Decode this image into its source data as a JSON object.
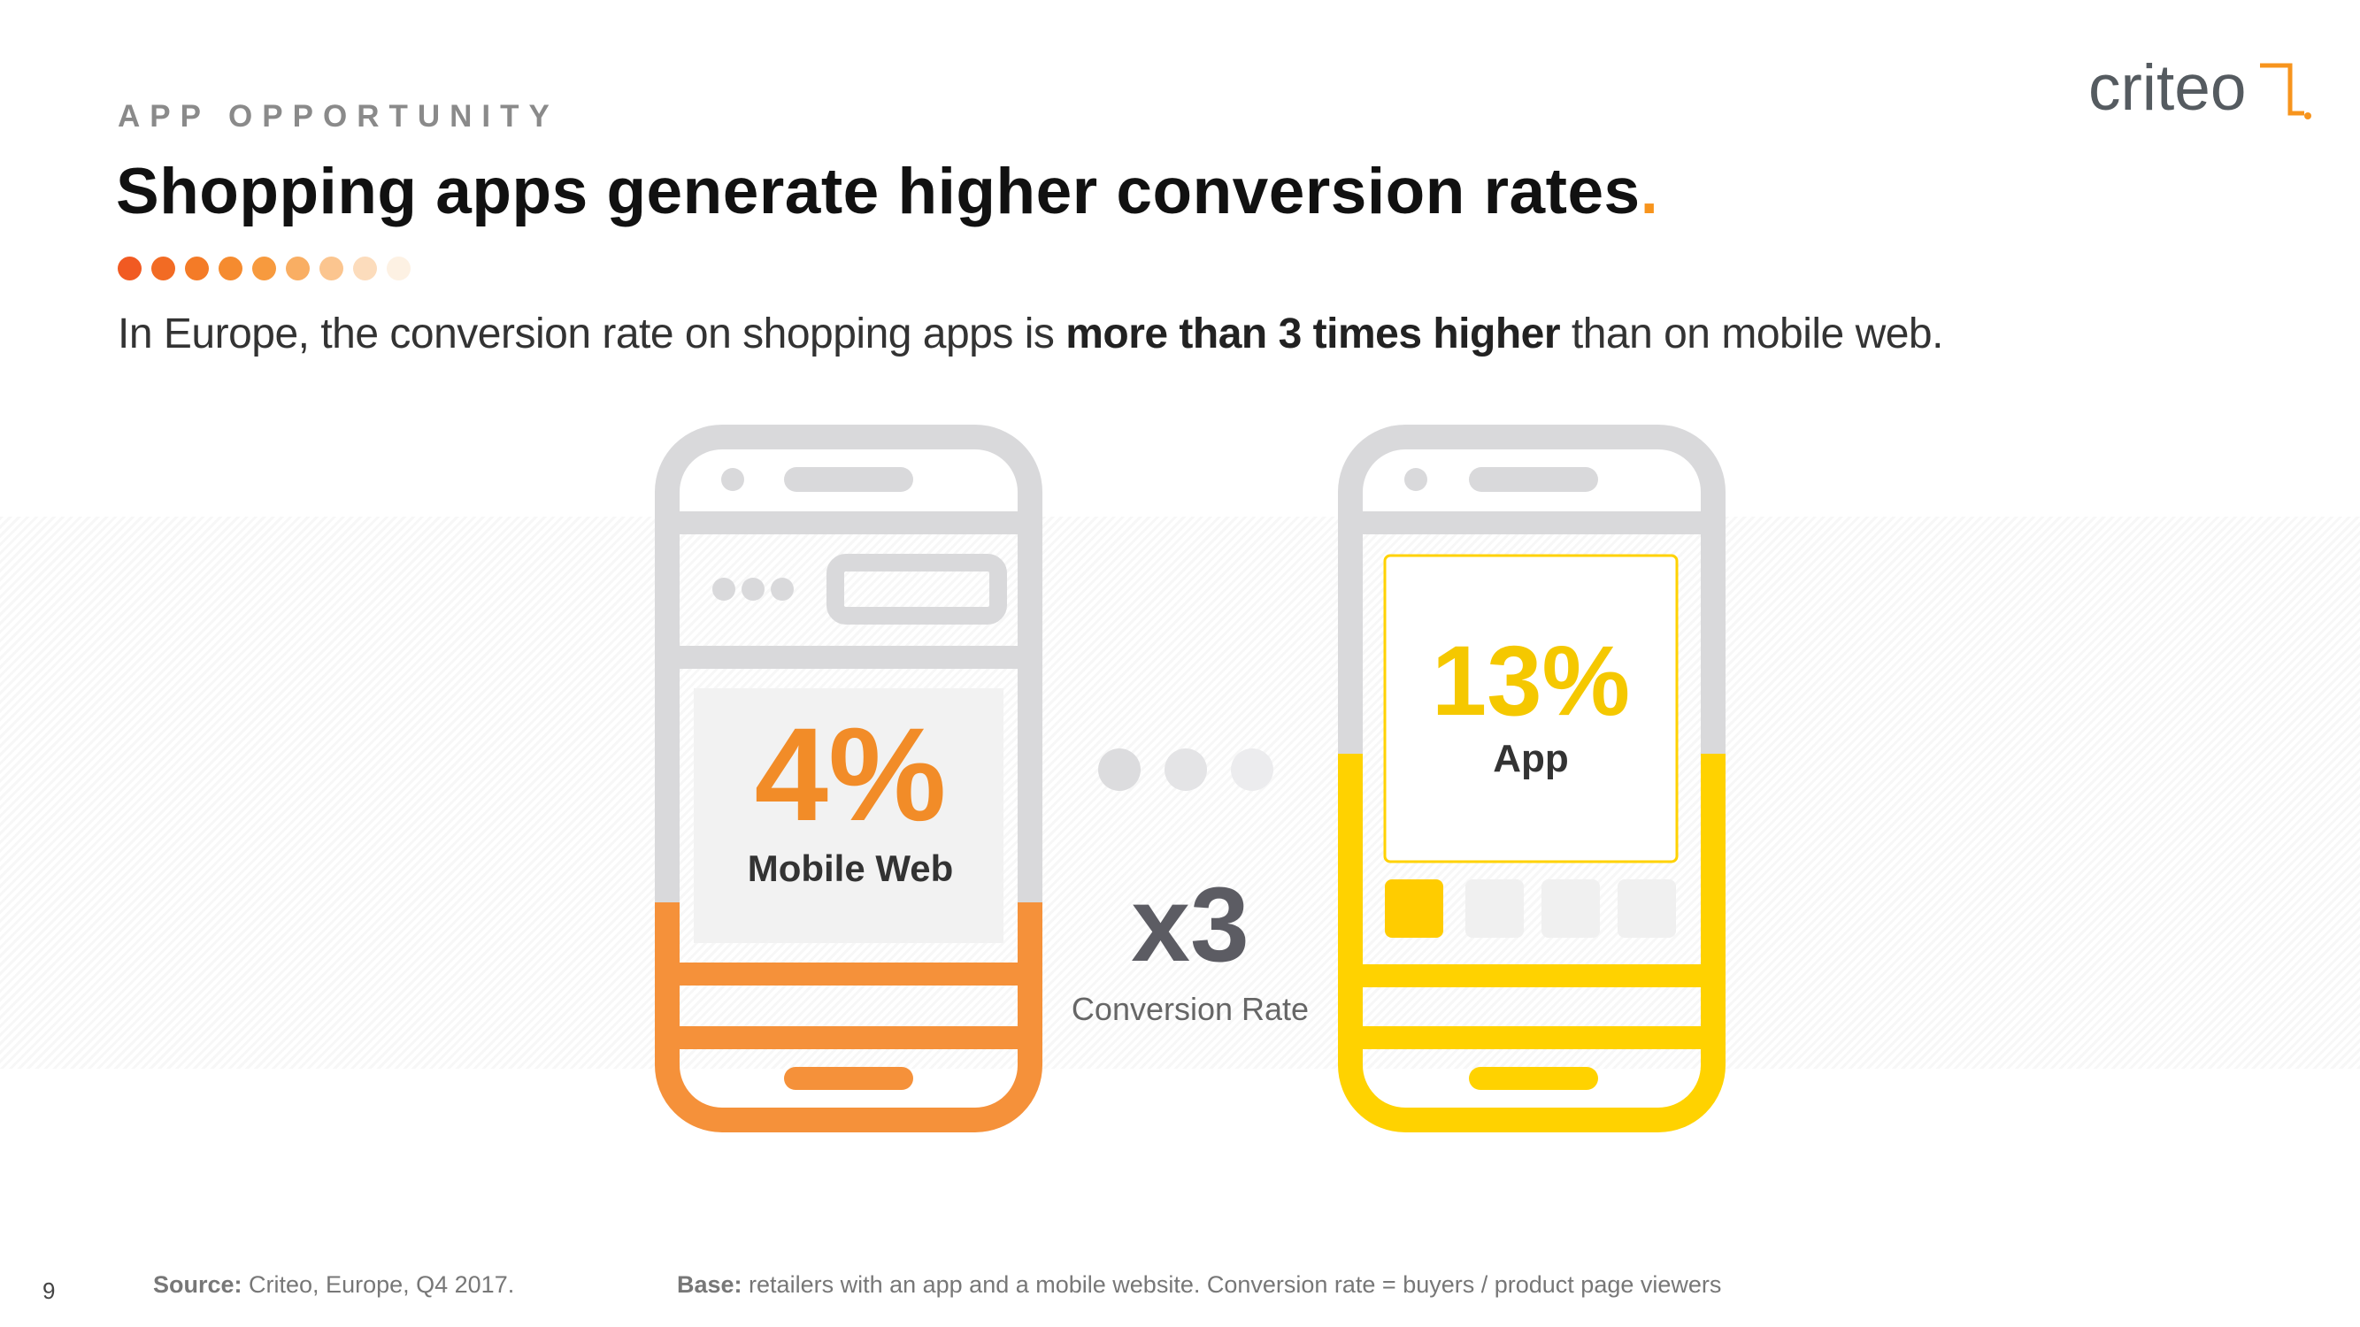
{
  "header": {
    "eyebrow": "APP OPPORTUNITY",
    "title": "Shopping apps generate higher conversion rates",
    "title_period": ".",
    "subtitle_prefix": "In Europe, the conversion rate on shopping apps is ",
    "subtitle_bold": "more than 3 times higher",
    "subtitle_suffix": " than on mobile web."
  },
  "logo": {
    "text": "criteo",
    "mark": "."
  },
  "dot_colors": [
    "#f15a22",
    "#f26b24",
    "#f47b27",
    "#f58b2f",
    "#f79a3e",
    "#f9ae63",
    "#fbc58f",
    "#fcdcbc",
    "#fdf1e3"
  ],
  "mobile_web": {
    "value": "4%",
    "label": "Mobile Web",
    "color": "#f28c28"
  },
  "app": {
    "value": "13%",
    "label": "App",
    "color": "#f5c800"
  },
  "comparison": {
    "multiplier": "x3",
    "label": "Conversion Rate"
  },
  "footer": {
    "page_number": "9",
    "source_label": "Source:",
    "source_text": " Criteo, Europe, Q4 2017.",
    "base_label": "Base:",
    "base_text": " retailers with an app and a mobile website. Conversion rate = buyers / product page viewers"
  },
  "colors": {
    "accent_orange": "#f7941d",
    "phone_gray": "#d9d9db",
    "app_yellow": "#ffd200",
    "web_orange": "#f5913a"
  }
}
